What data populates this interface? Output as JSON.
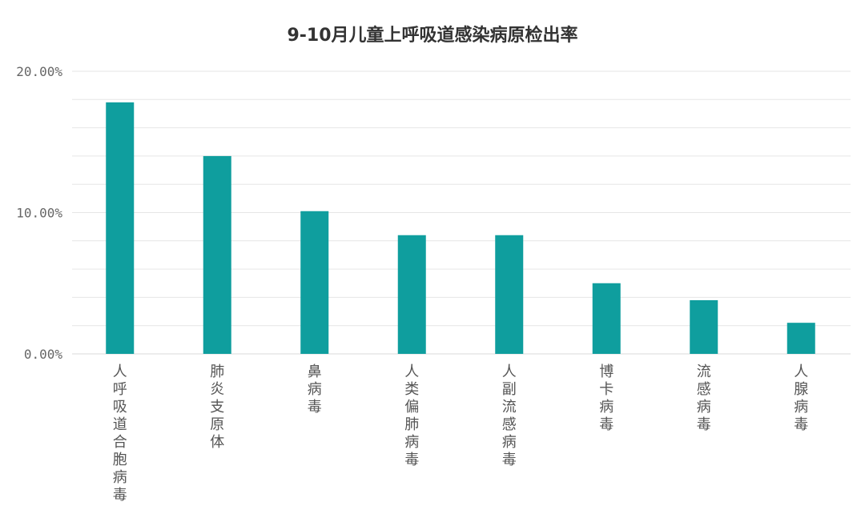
{
  "chart_data": {
    "type": "bar",
    "title": "9-10月儿童上呼吸道感染病原检出率",
    "xlabel": "",
    "ylabel": "",
    "categories": [
      "人呼吸道合胞病毒",
      "肺炎支原体",
      "鼻病毒",
      "人类偏肺病毒",
      "人副流感病毒",
      "博卡病毒",
      "流感病毒",
      "人腺病毒"
    ],
    "values": [
      17.8,
      14.0,
      10.1,
      8.4,
      8.4,
      5.0,
      3.8,
      2.2
    ],
    "value_unit": "%",
    "ylim": [
      0,
      20
    ],
    "yticks": [
      0,
      10,
      20
    ],
    "ytick_labels": [
      "0.00%",
      "10.00%",
      "20.00%"
    ],
    "minor_grid_step": 2,
    "grid": true,
    "bar_color": "#0f9e9e",
    "grid_color": "#e6e6e6"
  }
}
